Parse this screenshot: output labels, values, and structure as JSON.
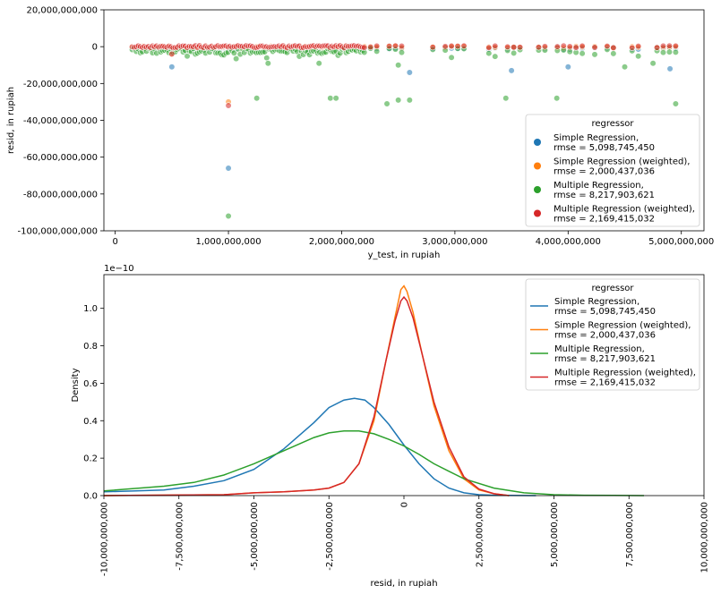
{
  "colors": {
    "simple": "#1f77b4",
    "simple_weighted": "#ff7f0e",
    "multiple": "#2ca02c",
    "multiple_weighted": "#d62728"
  },
  "legend_entries": [
    {
      "key": "simple",
      "line1": "Simple Regression,",
      "line2": "rmse = 5,098,745,450"
    },
    {
      "key": "simple_weighted",
      "line1": "Simple Regression (weighted),",
      "line2": "rmse = 2,000,437,036"
    },
    {
      "key": "multiple",
      "line1": "Multiple Regression,",
      "line2": "rmse = 8,217,903,621"
    },
    {
      "key": "multiple_weighted",
      "line1": "Multiple Regression (weighted),",
      "line2": "rmse = 2,169,415,032"
    }
  ],
  "chart_data": [
    {
      "type": "scatter",
      "xlabel": "y_test, in rupiah",
      "ylabel": "resid, in rupiah",
      "xlim": [
        -100000000,
        5200000000
      ],
      "ylim": [
        -100000000000,
        20000000000
      ],
      "xticks": [
        0,
        1000000000,
        2000000000,
        3000000000,
        4000000000,
        5000000000
      ],
      "xtick_labels": [
        "0",
        "1,000,000,000",
        "2,000,000,000",
        "3,000,000,000",
        "4,000,000,000",
        "5,000,000,000"
      ],
      "yticks": [
        20000000000,
        0,
        -20000000000,
        -40000000000,
        -60000000000,
        -80000000000,
        -100000000000
      ],
      "ytick_labels": [
        "20,000,000,000",
        "0",
        "-20,000,000,000",
        "-40,000,000,000",
        "-60,000,000,000",
        "-80,000,000,000",
        "-100,000,000,000"
      ],
      "legend_title": "regressor",
      "legend_position": "bottom-right",
      "outliers": [
        {
          "series": "multiple",
          "x": 1000000000,
          "y": -92000000000
        },
        {
          "series": "simple",
          "x": 1000000000,
          "y": -66000000000
        },
        {
          "series": "simple_weighted",
          "x": 1000000000,
          "y": -30000000000
        },
        {
          "series": "multiple_weighted",
          "x": 1000000000,
          "y": -32000000000
        },
        {
          "series": "multiple",
          "x": 1250000000,
          "y": -28000000000
        },
        {
          "series": "multiple",
          "x": 1900000000,
          "y": -28000000000
        },
        {
          "series": "multiple",
          "x": 1950000000,
          "y": -28000000000
        },
        {
          "series": "multiple",
          "x": 2400000000,
          "y": -31000000000
        },
        {
          "series": "multiple",
          "x": 2500000000,
          "y": -29000000000
        },
        {
          "series": "multiple",
          "x": 2600000000,
          "y": -29000000000
        },
        {
          "series": "multiple",
          "x": 3450000000,
          "y": -28000000000
        },
        {
          "series": "multiple",
          "x": 3900000000,
          "y": -28000000000
        },
        {
          "series": "multiple",
          "x": 4950000000,
          "y": -31000000000
        },
        {
          "series": "simple",
          "x": 500000000,
          "y": -11000000000
        },
        {
          "series": "simple",
          "x": 2600000000,
          "y": -14000000000
        },
        {
          "series": "simple",
          "x": 3500000000,
          "y": -13000000000
        },
        {
          "series": "simple",
          "x": 4000000000,
          "y": -11000000000
        },
        {
          "series": "simple",
          "x": 4900000000,
          "y": -12000000000
        },
        {
          "series": "multiple",
          "x": 1350000000,
          "y": -9000000000
        },
        {
          "series": "multiple",
          "x": 1800000000,
          "y": -9000000000
        },
        {
          "series": "multiple",
          "x": 2500000000,
          "y": -10000000000
        },
        {
          "series": "multiple",
          "x": 4500000000,
          "y": -11000000000
        },
        {
          "series": "multiple",
          "x": 4750000000,
          "y": -9000000000
        },
        {
          "series": "simple_weighted",
          "x": 500000000,
          "y": -4000000000
        },
        {
          "series": "multiple_weighted",
          "x": 500000000,
          "y": -4000000000
        }
      ]
    },
    {
      "type": "line",
      "title_multiplier": "1e−10",
      "xlabel": "resid, in rupiah",
      "ylabel": "Density",
      "xlim": [
        -10000000000,
        10000000000
      ],
      "ylim": [
        0,
        1.18
      ],
      "xticks": [
        -10000000000,
        -7500000000,
        -5000000000,
        -2500000000,
        0,
        2500000000,
        5000000000,
        7500000000,
        10000000000
      ],
      "xtick_labels": [
        "-10,000,000,000",
        "-7,500,000,000",
        "-5,000,000,000",
        "-2,500,000,000",
        "0",
        "2,500,000,000",
        "5,000,000,000",
        "7,500,000,000",
        "10,000,000,000"
      ],
      "yticks": [
        0.0,
        0.2,
        0.4,
        0.6,
        0.8,
        1.0
      ],
      "ytick_labels": [
        "0.0",
        "0.2",
        "0.4",
        "0.6",
        "0.8",
        "1.0"
      ],
      "legend_title": "regressor",
      "legend_position": "top-right",
      "series": [
        {
          "key": "simple",
          "x": [
            -10000000000,
            -8000000000,
            -7000000000,
            -6000000000,
            -5000000000,
            -4000000000,
            -3000000000,
            -2500000000,
            -2000000000,
            -1650000000,
            -1300000000,
            -1000000000,
            -500000000,
            0,
            500000000,
            1000000000,
            1500000000,
            2000000000,
            2500000000,
            3000000000,
            3500000000,
            4400000000
          ],
          "y": [
            0.02,
            0.03,
            0.05,
            0.08,
            0.14,
            0.25,
            0.39,
            0.47,
            0.51,
            0.52,
            0.51,
            0.47,
            0.38,
            0.27,
            0.17,
            0.09,
            0.04,
            0.015,
            0.005,
            0.002,
            0.001,
            0.0
          ]
        },
        {
          "key": "simple_weighted",
          "x": [
            -10000000000,
            -6000000000,
            -5000000000,
            -4000000000,
            -3000000000,
            -2500000000,
            -2000000000,
            -1500000000,
            -1000000000,
            -600000000,
            -300000000,
            -100000000,
            0,
            100000000,
            300000000,
            600000000,
            1000000000,
            1500000000,
            2000000000,
            2500000000,
            3000000000,
            3500000000
          ],
          "y": [
            0.0,
            0.005,
            0.015,
            0.02,
            0.03,
            0.04,
            0.07,
            0.17,
            0.4,
            0.72,
            0.95,
            1.1,
            1.12,
            1.09,
            0.98,
            0.76,
            0.48,
            0.24,
            0.09,
            0.03,
            0.01,
            0.0
          ]
        },
        {
          "key": "multiple",
          "x": [
            -10000000000,
            -8000000000,
            -7000000000,
            -6000000000,
            -5000000000,
            -4000000000,
            -3000000000,
            -2500000000,
            -2000000000,
            -1500000000,
            -1000000000,
            -500000000,
            0,
            500000000,
            1000000000,
            1500000000,
            2000000000,
            3000000000,
            4000000000,
            5000000000,
            6000000000,
            7000000000,
            8000000000
          ],
          "y": [
            0.025,
            0.05,
            0.07,
            0.11,
            0.17,
            0.24,
            0.31,
            0.335,
            0.345,
            0.345,
            0.33,
            0.3,
            0.265,
            0.22,
            0.17,
            0.13,
            0.09,
            0.04,
            0.015,
            0.005,
            0.002,
            0.001,
            0.0
          ]
        },
        {
          "key": "multiple_weighted",
          "x": [
            -10000000000,
            -6000000000,
            -5000000000,
            -4000000000,
            -3000000000,
            -2500000000,
            -2000000000,
            -1500000000,
            -1000000000,
            -600000000,
            -300000000,
            -100000000,
            0,
            100000000,
            300000000,
            600000000,
            1000000000,
            1500000000,
            2000000000,
            2500000000,
            3000000000,
            3500000000
          ],
          "y": [
            0.0,
            0.005,
            0.015,
            0.02,
            0.03,
            0.04,
            0.07,
            0.17,
            0.42,
            0.72,
            0.93,
            1.04,
            1.06,
            1.04,
            0.95,
            0.76,
            0.5,
            0.26,
            0.1,
            0.035,
            0.01,
            0.0
          ]
        }
      ]
    }
  ]
}
